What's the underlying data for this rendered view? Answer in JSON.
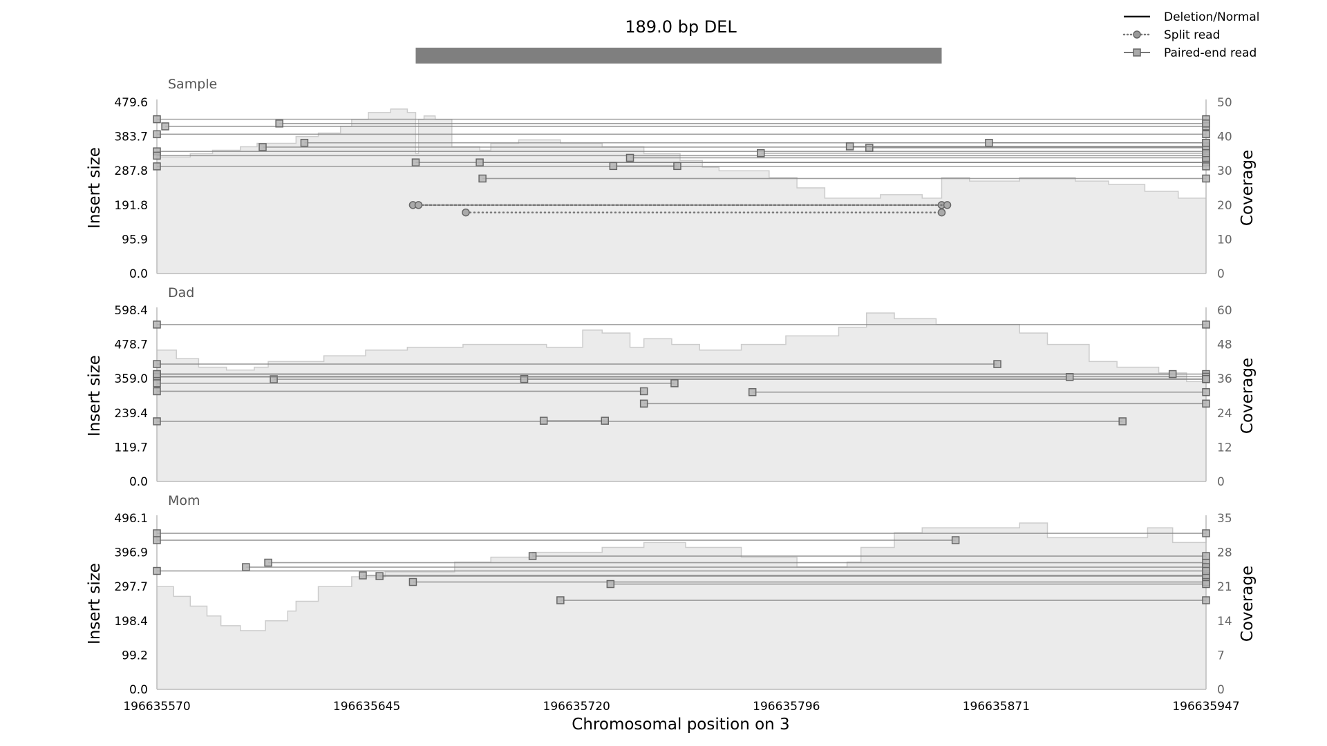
{
  "chart_data": {
    "type": "line",
    "title": "189.0 bp DEL",
    "event": {
      "start": 196635663,
      "end": 196635852
    },
    "xlabel": "Chromosomal position on 3",
    "xlim": [
      196635570,
      196635947
    ],
    "xticks": [
      "196635570",
      "196635645",
      "196635720",
      "196635796",
      "196635871",
      "196635947"
    ],
    "legend": {
      "position": "top-right",
      "entries": [
        {
          "label": "Deletion/Normal",
          "style": "solid"
        },
        {
          "label": "Split read",
          "style": "dotted-circle"
        },
        {
          "label": "Paired-end read",
          "style": "solid-square"
        }
      ]
    },
    "colors": {
      "coverage_fill": "#ebebeb",
      "coverage_line": "#cccccc",
      "read": "#7f7f7f",
      "event_bar": "#7f7f7f",
      "axis": "#bbbbbb"
    },
    "panels": [
      {
        "name": "Sample",
        "ylabel": "Insert size",
        "ylim": [
          0,
          479.6
        ],
        "yticks": [
          "0.0",
          "95.9",
          "191.8",
          "287.8",
          "383.7",
          "479.6"
        ],
        "y2label": "Coverage",
        "y2lim": [
          0,
          50
        ],
        "y2ticks": [
          "0",
          "10",
          "20",
          "30",
          "40",
          "50"
        ],
        "coverage": [
          [
            196635570,
            34
          ],
          [
            196635582,
            35
          ],
          [
            196635590,
            36
          ],
          [
            196635600,
            37
          ],
          [
            196635606,
            38
          ],
          [
            196635620,
            40
          ],
          [
            196635628,
            41
          ],
          [
            196635636,
            43
          ],
          [
            196635640,
            45
          ],
          [
            196635646,
            47
          ],
          [
            196635654,
            48
          ],
          [
            196635660,
            47
          ],
          [
            196635666,
            46
          ],
          [
            196635664,
            45
          ],
          [
            196635670,
            45
          ],
          [
            196635663,
            35
          ],
          [
            196635676,
            37
          ],
          [
            196635686,
            36
          ],
          [
            196635690,
            38
          ],
          [
            196635700,
            39
          ],
          [
            196635715,
            38
          ],
          [
            196635730,
            37
          ],
          [
            196635745,
            35
          ],
          [
            196635758,
            33
          ],
          [
            196635766,
            31
          ],
          [
            196635772,
            30
          ],
          [
            196635790,
            28
          ],
          [
            196635800,
            25
          ],
          [
            196635810,
            22
          ],
          [
            196635830,
            23
          ],
          [
            196635845,
            22
          ],
          [
            196635852,
            28
          ],
          [
            196635862,
            27
          ],
          [
            196635880,
            28
          ],
          [
            196635900,
            27
          ],
          [
            196635912,
            26
          ],
          [
            196635925,
            24
          ],
          [
            196635937,
            22
          ],
          [
            196635947,
            22
          ]
        ],
        "paired_reads": [
          [
            196635570,
            196635947,
            432
          ],
          [
            196635573,
            196635947,
            412
          ],
          [
            196635614,
            196635947,
            420
          ],
          [
            196635570,
            196635947,
            390
          ],
          [
            196635623,
            196635947,
            366
          ],
          [
            196635608,
            196635947,
            354
          ],
          [
            196635570,
            196635947,
            342
          ],
          [
            196635570,
            196635947,
            330
          ],
          [
            196635663,
            196635947,
            311
          ],
          [
            196635686,
            196635947,
            311
          ],
          [
            196635740,
            196635947,
            324
          ],
          [
            196635826,
            196635947,
            352
          ],
          [
            196635819,
            196635947,
            356
          ],
          [
            196635869,
            196635947,
            366
          ],
          [
            196635570,
            196635947,
            300
          ],
          [
            196635734,
            196635757,
            301
          ],
          [
            196635687,
            196635947,
            266
          ],
          [
            196635787,
            196635947,
            337
          ]
        ],
        "split_reads": [
          [
            196635662,
            196635852,
            191.8
          ],
          [
            196635664,
            196635854,
            191.8
          ],
          [
            196635681,
            196635852,
            171
          ]
        ]
      },
      {
        "name": "Dad",
        "ylabel": "Insert size",
        "ylim": [
          0,
          598.4
        ],
        "yticks": [
          "0.0",
          "119.7",
          "239.4",
          "359.0",
          "478.7",
          "598.4"
        ],
        "y2label": "Coverage",
        "y2lim": [
          0,
          60
        ],
        "y2ticks": [
          "0",
          "12",
          "24",
          "36",
          "48",
          "60"
        ],
        "coverage": [
          [
            196635570,
            46
          ],
          [
            196635577,
            43
          ],
          [
            196635585,
            40
          ],
          [
            196635595,
            39
          ],
          [
            196635605,
            40
          ],
          [
            196635610,
            42
          ],
          [
            196635620,
            42
          ],
          [
            196635630,
            44
          ],
          [
            196635645,
            46
          ],
          [
            196635660,
            47
          ],
          [
            196635680,
            48
          ],
          [
            196635700,
            48
          ],
          [
            196635710,
            47
          ],
          [
            196635720,
            47
          ],
          [
            196635723,
            53
          ],
          [
            196635730,
            52
          ],
          [
            196635740,
            47
          ],
          [
            196635745,
            50
          ],
          [
            196635755,
            48
          ],
          [
            196635765,
            46
          ],
          [
            196635780,
            48
          ],
          [
            196635796,
            51
          ],
          [
            196635815,
            54
          ],
          [
            196635825,
            59
          ],
          [
            196635835,
            57
          ],
          [
            196635850,
            55
          ],
          [
            196635865,
            55
          ],
          [
            196635880,
            52
          ],
          [
            196635890,
            48
          ],
          [
            196635905,
            42
          ],
          [
            196635915,
            40
          ],
          [
            196635930,
            38
          ],
          [
            196635940,
            35
          ],
          [
            196635947,
            33
          ]
        ],
        "paired_reads": [
          [
            196635570,
            196635947,
            548
          ],
          [
            196635570,
            196635872,
            410
          ],
          [
            196635570,
            196635947,
            375
          ],
          [
            196635570,
            196635947,
            366
          ],
          [
            196635612,
            196635947,
            357
          ],
          [
            196635702,
            196635947,
            358
          ],
          [
            196635570,
            196635898,
            365
          ],
          [
            196635570,
            196635745,
            315
          ],
          [
            196635784,
            196635947,
            312
          ],
          [
            196635745,
            196635947,
            272
          ],
          [
            196635570,
            196635917,
            210
          ],
          [
            196635709,
            196635731,
            212
          ],
          [
            196635570,
            196635935,
            375
          ],
          [
            196635570,
            196635756,
            343
          ]
        ],
        "split_reads": []
      },
      {
        "name": "Mom",
        "ylabel": "Insert size",
        "ylim": [
          0,
          496.1
        ],
        "yticks": [
          "0.0",
          "99.2",
          "198.4",
          "297.7",
          "396.9",
          "496.1"
        ],
        "y2label": "Coverage",
        "y2lim": [
          0,
          35
        ],
        "y2ticks": [
          "0",
          "7",
          "14",
          "21",
          "28",
          "35"
        ],
        "coverage": [
          [
            196635570,
            21
          ],
          [
            196635576,
            19
          ],
          [
            196635582,
            17
          ],
          [
            196635588,
            15
          ],
          [
            196635593,
            13
          ],
          [
            196635600,
            12
          ],
          [
            196635609,
            14
          ],
          [
            196635617,
            16
          ],
          [
            196635620,
            18
          ],
          [
            196635628,
            21
          ],
          [
            196635640,
            23
          ],
          [
            196635652,
            24
          ],
          [
            196635665,
            24
          ],
          [
            196635677,
            26
          ],
          [
            196635690,
            27
          ],
          [
            196635705,
            28
          ],
          [
            196635730,
            29
          ],
          [
            196635745,
            30
          ],
          [
            196635760,
            29
          ],
          [
            196635780,
            27
          ],
          [
            196635800,
            25
          ],
          [
            196635818,
            26
          ],
          [
            196635823,
            29
          ],
          [
            196635835,
            32
          ],
          [
            196635845,
            33
          ],
          [
            196635862,
            33
          ],
          [
            196635880,
            34
          ],
          [
            196635890,
            31
          ],
          [
            196635910,
            31
          ],
          [
            196635926,
            33
          ],
          [
            196635935,
            30
          ],
          [
            196635947,
            31
          ]
        ],
        "paired_reads": [
          [
            196635570,
            196635947,
            452
          ],
          [
            196635570,
            196635857,
            432
          ],
          [
            196635610,
            196635947,
            367
          ],
          [
            196635602,
            196635947,
            354
          ],
          [
            196635644,
            196635947,
            330
          ],
          [
            196635650,
            196635947,
            328
          ],
          [
            196635662,
            196635947,
            311
          ],
          [
            196635733,
            196635947,
            305
          ],
          [
            196635705,
            196635947,
            386
          ],
          [
            196635715,
            196635947,
            258
          ],
          [
            196635570,
            196635947,
            343
          ]
        ],
        "split_reads": []
      }
    ]
  }
}
